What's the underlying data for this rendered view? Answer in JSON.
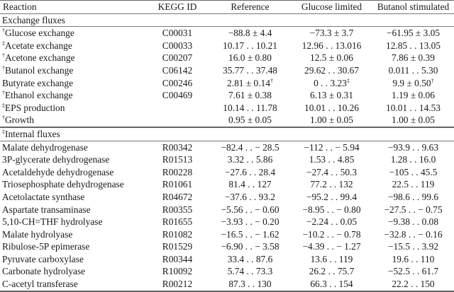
{
  "table": {
    "columns": [
      "Reaction",
      "KEGG ID",
      "Reference",
      "Glucose limited",
      "Butanol stimulated"
    ],
    "sections": [
      {
        "title": "Exchange fluxes",
        "title_mark": "",
        "rows": [
          {
            "mark": "†",
            "reaction": "Glucose exchange",
            "kegg": "C00031",
            "ref": "−88.8 ± 4.4",
            "ref_mark": "",
            "glu": "−73.3 ± 3.7",
            "glu_mark": "",
            "but": "−61.95 ± 3.05",
            "but_mark": ""
          },
          {
            "mark": "‡",
            "reaction": "Acetate exchange",
            "kegg": "C00033",
            "ref": "10.17 . . 10.21",
            "ref_mark": "",
            "glu": "12.96 . . 13.016",
            "glu_mark": "",
            "but": "12.85 . . 13.05",
            "but_mark": ""
          },
          {
            "mark": "†",
            "reaction": "Acetone exchange",
            "kegg": "C00207",
            "ref": "16.0 ± 0.80",
            "ref_mark": "",
            "glu": "12.5 ± 0.06",
            "glu_mark": "",
            "but": "7.86 ± 0.39",
            "but_mark": ""
          },
          {
            "mark": "†",
            "reaction": "Butanol exchange",
            "kegg": "C06142",
            "ref": "35.77 . . 37.48",
            "ref_mark": "",
            "glu": "29.62 . . 30.67",
            "glu_mark": "",
            "but": "0.011 . . 5.30",
            "but_mark": ""
          },
          {
            "mark": "",
            "reaction": "Butyrate exchange",
            "kegg": "C00246",
            "ref": "2.81 ± 0.14",
            "ref_mark": "†",
            "glu": "0 . . 3.23",
            "glu_mark": "‡",
            "but": "9.9 ± 0.50",
            "but_mark": "†"
          },
          {
            "mark": "†",
            "reaction": "Ethanol exchange",
            "kegg": "C00469",
            "ref": "7.61 ± 0.38",
            "ref_mark": "",
            "glu": "6.13 ± 0.31",
            "glu_mark": "",
            "but": "1.19 ± 0.06",
            "but_mark": ""
          },
          {
            "mark": "‡",
            "reaction": "EPS production",
            "kegg": "",
            "ref": "10.14 . . 11.78",
            "ref_mark": "",
            "glu": "10.01 . . 10.26",
            "glu_mark": "",
            "but": "10.01 . . 14.53",
            "but_mark": ""
          },
          {
            "mark": "†",
            "reaction": "Growth",
            "kegg": "",
            "ref": "0.95 ± 0.05",
            "ref_mark": "",
            "glu": "1.00 ± 0.05",
            "glu_mark": "",
            "but": "1.00 ± 0.05",
            "but_mark": ""
          }
        ]
      },
      {
        "title": "Internal fluxes",
        "title_mark": "‡",
        "rows": [
          {
            "mark": "",
            "reaction": "Malate dehydrogenase",
            "kegg": "R00342",
            "ref": "−82.4 . . − 28.5",
            "ref_mark": "",
            "glu": "−112 . . − 5.94",
            "glu_mark": "",
            "but": "−93.9 . . 9.63",
            "but_mark": ""
          },
          {
            "mark": "",
            "reaction": "3P-glycerate dehydrogenase",
            "kegg": "R01513",
            "ref": "3.32 . . 5.86",
            "ref_mark": "",
            "glu": "1.53 . . 4.85",
            "glu_mark": "",
            "but": "1.28 . . 16.0",
            "but_mark": ""
          },
          {
            "mark": "",
            "reaction": "Acetaldehyde dehydrogenase",
            "kegg": "R00228",
            "ref": "−27.6 . . 28.4",
            "ref_mark": "",
            "glu": "−27.4 . . 50.3",
            "glu_mark": "",
            "but": "−105 . . 45.5",
            "but_mark": ""
          },
          {
            "mark": "",
            "reaction": "Triosephosphate dehydrogenase",
            "kegg": "R01061",
            "ref": "81.4 . . 127",
            "ref_mark": "",
            "glu": "77.2 . . 132",
            "glu_mark": "",
            "but": "22.5 . . 119",
            "but_mark": ""
          },
          {
            "mark": "",
            "reaction": "Acetolactate synthase",
            "kegg": "R04672",
            "ref": "−37.6 . . 93.2",
            "ref_mark": "",
            "glu": "−95.2 . . 99.4",
            "glu_mark": "",
            "but": "−98.6 . . 99.6",
            "but_mark": ""
          },
          {
            "mark": "",
            "reaction": "Aspartate transaminase",
            "kegg": "R00355",
            "ref": "−5.56 . . − 0.60",
            "ref_mark": "",
            "glu": "−8.95 . . − 0.80",
            "glu_mark": "",
            "but": "−27.5 . . − 0.75",
            "but_mark": ""
          },
          {
            "mark": "",
            "reaction": "5,10-CH=THF hydrolyase",
            "kegg": "R01655",
            "ref": "−3.93 . . − 0.20",
            "ref_mark": "",
            "glu": "−2.24 . . 0.05",
            "glu_mark": "",
            "but": "−9.38 . . 0.08",
            "but_mark": ""
          },
          {
            "mark": "",
            "reaction": "Malate hydrolyase",
            "kegg": "R01082",
            "ref": "−16.5 . . − 1.62",
            "ref_mark": "",
            "glu": "−10.2 . . − 0.78",
            "glu_mark": "",
            "but": "−32.8 . . − 0.16",
            "but_mark": ""
          },
          {
            "mark": "",
            "reaction": "Ribulose-5P epimerase",
            "kegg": "R01529",
            "ref": "−6.90 . . − 3.58",
            "ref_mark": "",
            "glu": "−4.39 . . − 1.27",
            "glu_mark": "",
            "but": "−15.5 . . 3.92",
            "but_mark": ""
          },
          {
            "mark": "",
            "reaction": "Pyruvate carboxylase",
            "kegg": "R00344",
            "ref": "33.4 . . 87.6",
            "ref_mark": "",
            "glu": "13.6 . . 119",
            "glu_mark": "",
            "but": "19.6 . . 110",
            "but_mark": ""
          },
          {
            "mark": "",
            "reaction": "Carbonate hydrolyase",
            "kegg": "R10092",
            "ref": "5.74 . . 73.3",
            "ref_mark": "",
            "glu": "26.2 . . 75.7",
            "glu_mark": "",
            "but": "−52.5 . . 61.7",
            "but_mark": ""
          },
          {
            "mark": "",
            "reaction": "C-acetyl transferase",
            "kegg": "R00212",
            "ref": "87.3 . . 130",
            "ref_mark": "",
            "glu": "66.3 . . 154",
            "glu_mark": "",
            "but": "22.2 . . 150",
            "but_mark": ""
          }
        ]
      }
    ]
  }
}
